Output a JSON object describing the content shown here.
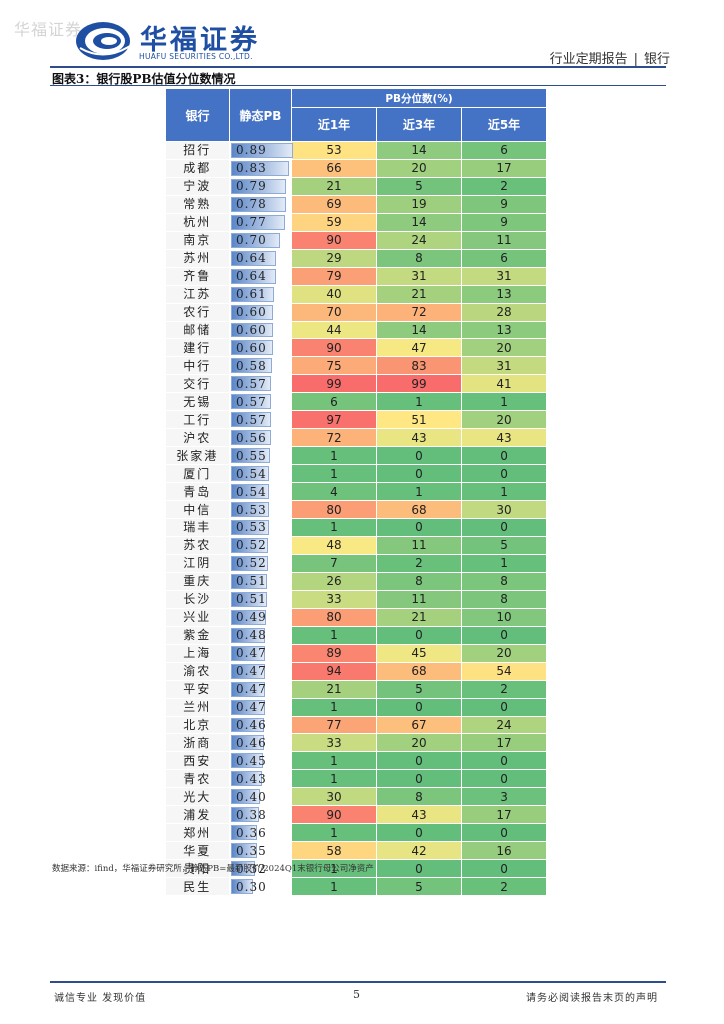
{
  "watermark": "华福证券",
  "logo": {
    "name_zh": "华福证券",
    "name_en": "HUAFU SECURITIES CO.,LTD.",
    "icon": "huafu-logo-icon"
  },
  "header": {
    "report_type": "行业定期报告",
    "separator": "|",
    "sector": "银行"
  },
  "caption": "图表3：银行股PB估值分位数情况",
  "table": {
    "columns": {
      "bank": "银行",
      "pb": "静态PB",
      "group": "PB分位数(%)",
      "y1": "近1年",
      "y3": "近3年",
      "y5": "近5年"
    },
    "rows": [
      {
        "bank": "招行",
        "pb": "0.89",
        "y1": "53",
        "y3": "14",
        "y5": "6"
      },
      {
        "bank": "成都",
        "pb": "0.83",
        "y1": "66",
        "y3": "20",
        "y5": "17"
      },
      {
        "bank": "宁波",
        "pb": "0.79",
        "y1": "21",
        "y3": "5",
        "y5": "2"
      },
      {
        "bank": "常熟",
        "pb": "0.78",
        "y1": "69",
        "y3": "19",
        "y5": "9"
      },
      {
        "bank": "杭州",
        "pb": "0.77",
        "y1": "59",
        "y3": "14",
        "y5": "9"
      },
      {
        "bank": "南京",
        "pb": "0.70",
        "y1": "90",
        "y3": "24",
        "y5": "11"
      },
      {
        "bank": "苏州",
        "pb": "0.64",
        "y1": "29",
        "y3": "8",
        "y5": "6"
      },
      {
        "bank": "齐鲁",
        "pb": "0.64",
        "y1": "79",
        "y3": "31",
        "y5": "31"
      },
      {
        "bank": "江苏",
        "pb": "0.61",
        "y1": "40",
        "y3": "21",
        "y5": "13"
      },
      {
        "bank": "农行",
        "pb": "0.60",
        "y1": "70",
        "y3": "72",
        "y5": "28"
      },
      {
        "bank": "邮储",
        "pb": "0.60",
        "y1": "44",
        "y3": "14",
        "y5": "13"
      },
      {
        "bank": "建行",
        "pb": "0.60",
        "y1": "90",
        "y3": "47",
        "y5": "20"
      },
      {
        "bank": "中行",
        "pb": "0.58",
        "y1": "75",
        "y3": "83",
        "y5": "31"
      },
      {
        "bank": "交行",
        "pb": "0.57",
        "y1": "99",
        "y3": "99",
        "y5": "41"
      },
      {
        "bank": "无锡",
        "pb": "0.57",
        "y1": "6",
        "y3": "1",
        "y5": "1"
      },
      {
        "bank": "工行",
        "pb": "0.57",
        "y1": "97",
        "y3": "51",
        "y5": "20"
      },
      {
        "bank": "沪农",
        "pb": "0.56",
        "y1": "72",
        "y3": "43",
        "y5": "43"
      },
      {
        "bank": "张家港",
        "pb": "0.55",
        "y1": "1",
        "y3": "0",
        "y5": "0"
      },
      {
        "bank": "厦门",
        "pb": "0.54",
        "y1": "1",
        "y3": "0",
        "y5": "0"
      },
      {
        "bank": "青岛",
        "pb": "0.54",
        "y1": "4",
        "y3": "1",
        "y5": "1"
      },
      {
        "bank": "中信",
        "pb": "0.53",
        "y1": "80",
        "y3": "68",
        "y5": "30"
      },
      {
        "bank": "瑞丰",
        "pb": "0.53",
        "y1": "1",
        "y3": "0",
        "y5": "0"
      },
      {
        "bank": "苏农",
        "pb": "0.52",
        "y1": "48",
        "y3": "11",
        "y5": "5"
      },
      {
        "bank": "江阴",
        "pb": "0.52",
        "y1": "7",
        "y3": "2",
        "y5": "1"
      },
      {
        "bank": "重庆",
        "pb": "0.51",
        "y1": "26",
        "y3": "8",
        "y5": "8"
      },
      {
        "bank": "长沙",
        "pb": "0.51",
        "y1": "33",
        "y3": "11",
        "y5": "8"
      },
      {
        "bank": "兴业",
        "pb": "0.49",
        "y1": "80",
        "y3": "21",
        "y5": "10"
      },
      {
        "bank": "紫金",
        "pb": "0.48",
        "y1": "1",
        "y3": "0",
        "y5": "0"
      },
      {
        "bank": "上海",
        "pb": "0.47",
        "y1": "89",
        "y3": "45",
        "y5": "20"
      },
      {
        "bank": "渝农",
        "pb": "0.47",
        "y1": "94",
        "y3": "68",
        "y5": "54"
      },
      {
        "bank": "平安",
        "pb": "0.47",
        "y1": "21",
        "y3": "5",
        "y5": "2"
      },
      {
        "bank": "兰州",
        "pb": "0.47",
        "y1": "1",
        "y3": "0",
        "y5": "0"
      },
      {
        "bank": "北京",
        "pb": "0.46",
        "y1": "77",
        "y3": "67",
        "y5": "24"
      },
      {
        "bank": "浙商",
        "pb": "0.46",
        "y1": "33",
        "y3": "20",
        "y5": "17"
      },
      {
        "bank": "西安",
        "pb": "0.45",
        "y1": "1",
        "y3": "0",
        "y5": "0"
      },
      {
        "bank": "青农",
        "pb": "0.43",
        "y1": "1",
        "y3": "0",
        "y5": "0"
      },
      {
        "bank": "光大",
        "pb": "0.40",
        "y1": "30",
        "y3": "8",
        "y5": "3"
      },
      {
        "bank": "浦发",
        "pb": "0.38",
        "y1": "90",
        "y3": "43",
        "y5": "17"
      },
      {
        "bank": "郑州",
        "pb": "0.36",
        "y1": "1",
        "y3": "0",
        "y5": "0"
      },
      {
        "bank": "华夏",
        "pb": "0.35",
        "y1": "58",
        "y3": "42",
        "y5": "16"
      },
      {
        "bank": "贵阳",
        "pb": "0.32",
        "y1": "1",
        "y3": "0",
        "y5": "0"
      },
      {
        "bank": "民生",
        "pb": "0.30",
        "y1": "1",
        "y3": "5",
        "y5": "2"
      }
    ]
  },
  "source": "数据来源：ifind，华福证券研究所，静态PB=最新股价/2024Q1末银行母公司净资产",
  "footer": {
    "left": "诚信专业  发现价值",
    "page": "5",
    "right": "请务必阅读报告末页的声明"
  }
}
